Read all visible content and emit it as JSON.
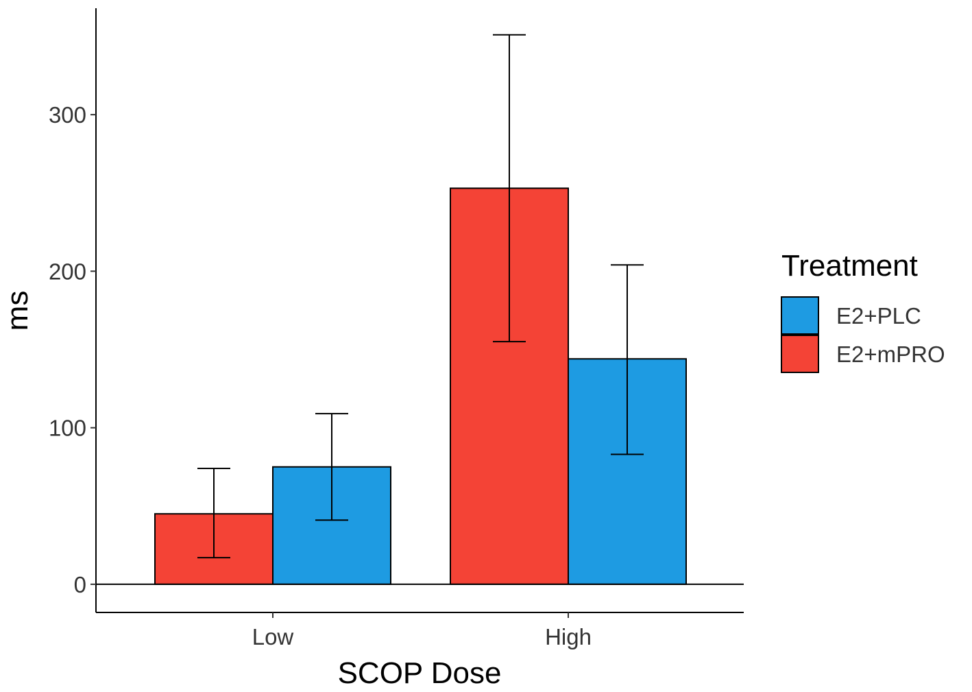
{
  "chart_data": {
    "type": "bar",
    "title": "",
    "xlabel": "SCOP Dose",
    "ylabel": "ms",
    "categories": [
      "Low",
      "High"
    ],
    "ylim": [
      -18,
      368
    ],
    "yticks": [
      0,
      100,
      200,
      300
    ],
    "ytick_labels": [
      "0",
      "100",
      "200",
      "300"
    ],
    "grid": false,
    "legend_title": "Treatment",
    "legend_position": "right",
    "legend_order": [
      "E2+PLC",
      "E2+mPRO"
    ],
    "series": [
      {
        "name": "E2+mPRO",
        "color": "#F44336",
        "values": [
          45,
          253
        ],
        "error_low": [
          17,
          155
        ],
        "error_high": [
          74,
          351
        ]
      },
      {
        "name": "E2+PLC",
        "color": "#1E9BE2",
        "values": [
          75,
          144
        ],
        "error_low": [
          41,
          83
        ],
        "error_high": [
          109,
          204
        ]
      }
    ]
  }
}
